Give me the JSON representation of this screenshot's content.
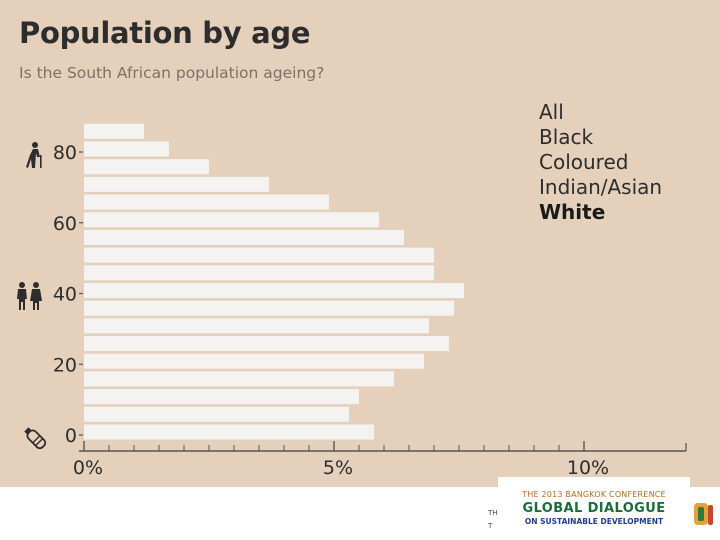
{
  "title": "Population by age",
  "subtitle": "Is the South African population ageing?",
  "legend": {
    "items": [
      "All",
      "Black",
      "Coloured",
      "Indian/Asian",
      "White"
    ],
    "selected": "White"
  },
  "footer": {
    "line1_fragment": "TH",
    "line2_fragment": "T"
  },
  "logo": {
    "line1": "THE 2013 BANGKOK CONFERENCE",
    "line2": "GLOBAL DIALOGUE",
    "line3": "ON SUSTAINABLE DEVELOPMENT"
  },
  "icons": [
    "elderly-person-icon",
    "adults-icon",
    "baby-bottle-icon"
  ],
  "colors": {
    "background": "#e5d1bb",
    "bar": "#f5f3f1",
    "text": "#2d2d2d",
    "axis": "#555555"
  },
  "chart_data": {
    "type": "bar",
    "orientation": "horizontal",
    "title": "Population by age",
    "subtitle": "Is the South African population ageing?",
    "series_name": "White",
    "age_group_start": [
      0,
      5,
      10,
      15,
      20,
      25,
      30,
      35,
      40,
      45,
      50,
      55,
      60,
      65,
      70,
      75,
      80,
      85
    ],
    "values": [
      5.8,
      5.3,
      5.5,
      6.2,
      6.8,
      7.3,
      6.9,
      7.4,
      7.6,
      7.0,
      7.0,
      6.4,
      5.9,
      4.9,
      3.7,
      2.5,
      1.7,
      1.2
    ],
    "xlim": [
      0,
      12
    ],
    "ylim": [
      0,
      90
    ],
    "x_ticks": [
      0,
      5,
      10
    ],
    "x_tick_labels": [
      "0%",
      "5%",
      "10%"
    ],
    "y_ticks": [
      0,
      20,
      40,
      60,
      80
    ],
    "y_tick_labels": [
      "0",
      "20",
      "40",
      "60",
      "80"
    ],
    "xlabel": "",
    "ylabel": "",
    "grid": false,
    "legend_position": "top-right"
  }
}
